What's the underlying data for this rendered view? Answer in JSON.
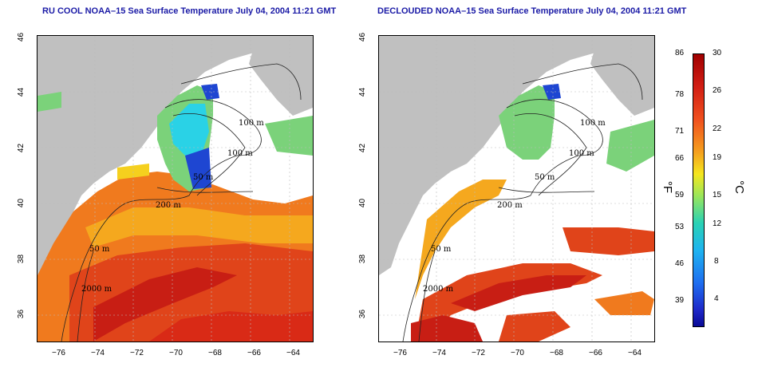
{
  "panels": [
    {
      "title": "RU COOL NOAA–15 Sea Surface Temperature July 04, 2004 11:21 GMT"
    },
    {
      "title": "DECLOUDED NOAA–15 Sea Surface Temperature July 04, 2004 11:21 GMT"
    }
  ],
  "lat_ticks": [
    "46",
    "44",
    "42",
    "40",
    "38",
    "36"
  ],
  "lon_ticks": [
    "−76",
    "−74",
    "−72",
    "−70",
    "−68",
    "−66",
    "−64"
  ],
  "contour_labels": [
    "100 m",
    "100 m",
    "50 m",
    "200 m",
    "50 m",
    "2000 m"
  ],
  "colorbar": {
    "f_ticks": [
      "86",
      "78",
      "71",
      "66",
      "59",
      "53",
      "46",
      "39"
    ],
    "c_ticks": [
      "30",
      "26",
      "22",
      "19",
      "15",
      "12",
      "8",
      "4"
    ],
    "f_unit": "°F",
    "c_unit": "°C"
  },
  "colors": {
    "land": "#c0c0c0",
    "title": "#1a1aa6",
    "warm": "#c81e14",
    "orange": "#f07a1e",
    "yellow": "#f5d01e",
    "green": "#7bd27a",
    "cyan": "#2ad2e6",
    "blue": "#1e46d2"
  }
}
